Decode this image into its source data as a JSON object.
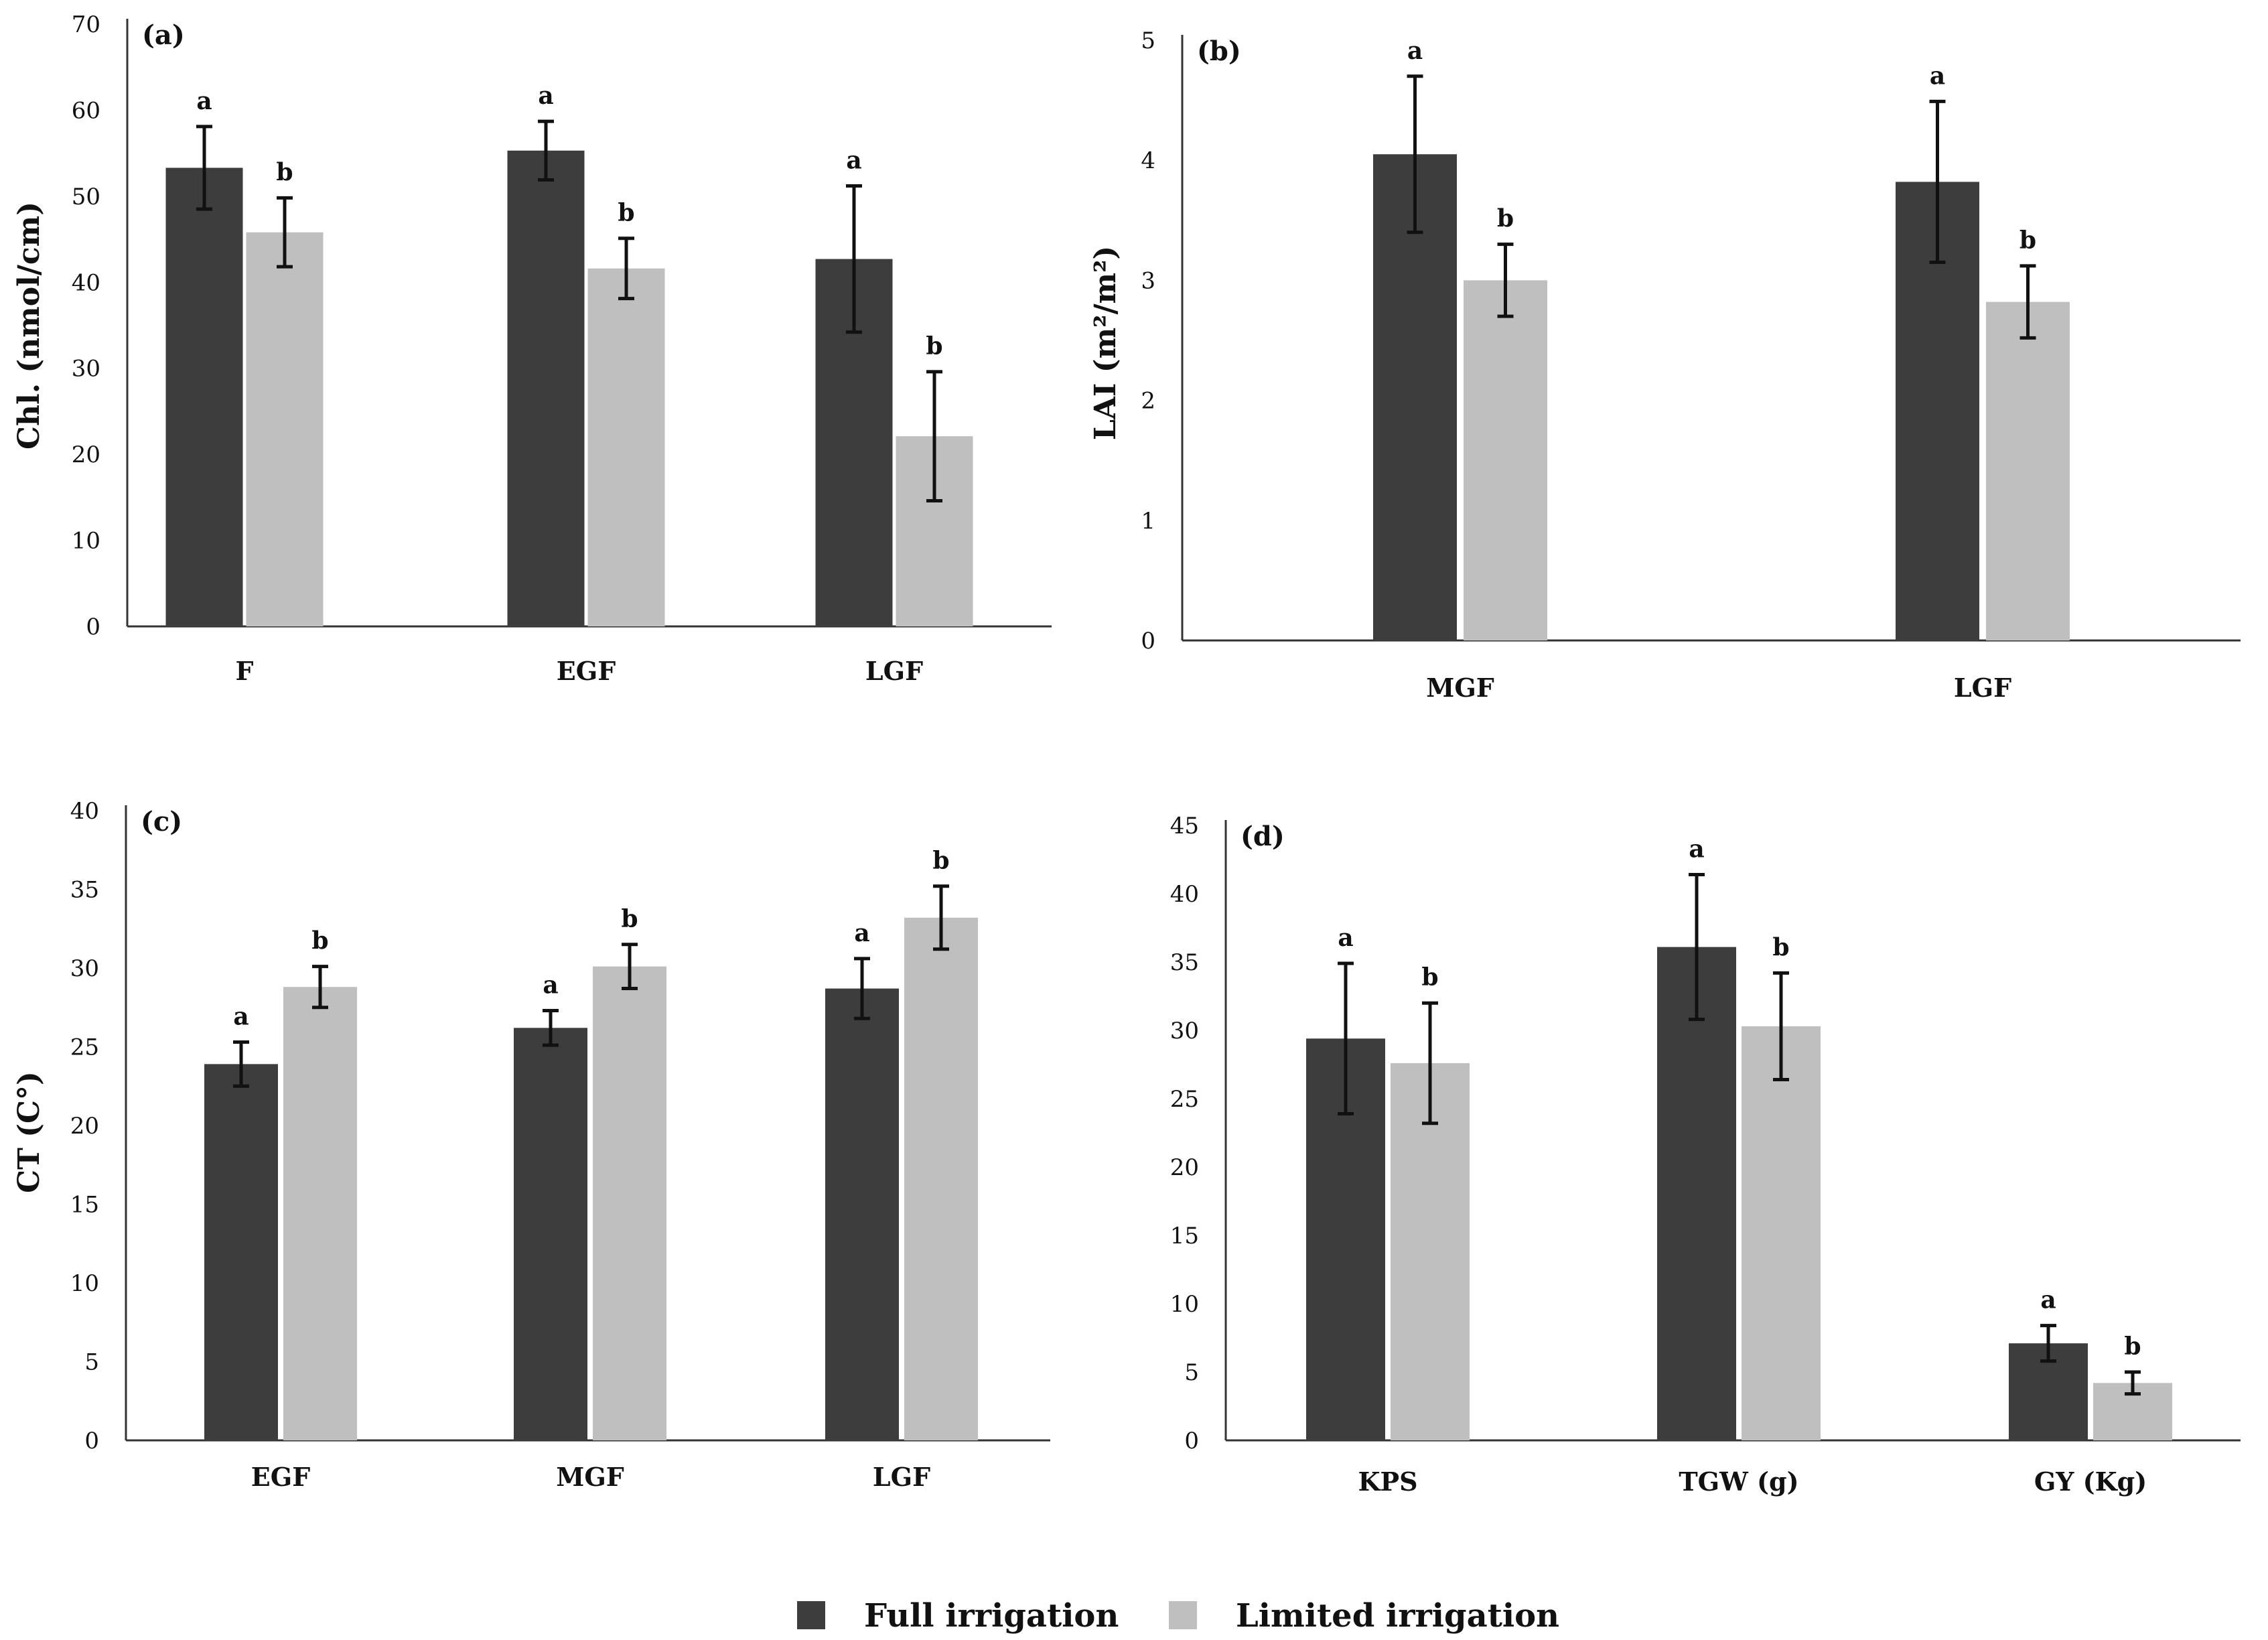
{
  "colors": {
    "full": "#3d3d3d",
    "limited": "#bfbfbf",
    "axis": "#333333",
    "errbar": "#111111"
  },
  "legend": [
    {
      "label": "Full irrigation",
      "color": "#3d3d3d"
    },
    {
      "label": "Limited irrigation",
      "color": "#bfbfbf"
    }
  ],
  "chart_data": [
    {
      "type": "bar",
      "panel": "(a)",
      "ylabel": "Chl. (nmol/cm)",
      "ylim": [
        0,
        70
      ],
      "yticks": [
        0,
        10,
        20,
        30,
        40,
        50,
        60,
        70
      ],
      "categories": [
        "F",
        "EGF",
        "LGF"
      ],
      "series": [
        {
          "name": "Full irrigation",
          "values": [
            53.3,
            55.3,
            42.7
          ],
          "errors": [
            4.8,
            3.4,
            8.5
          ],
          "letters": [
            "a",
            "a",
            "a"
          ]
        },
        {
          "name": "Limited irrigation",
          "values": [
            45.8,
            41.6,
            22.1
          ],
          "errors": [
            4,
            3.5,
            7.5
          ],
          "letters": [
            "b",
            "b",
            "b"
          ]
        }
      ]
    },
    {
      "type": "bar",
      "panel": "(b)",
      "ylabel": "LAI (m²/m²)",
      "ylim": [
        0,
        5
      ],
      "yticks": [
        0,
        1,
        2,
        3,
        4,
        5
      ],
      "categories": [
        "MGF",
        "LGF"
      ],
      "series": [
        {
          "name": "Full irrigation",
          "values": [
            4.05,
            3.82
          ],
          "errors": [
            0.65,
            0.67
          ],
          "letters": [
            "a",
            "a"
          ]
        },
        {
          "name": "Limited irrigation",
          "values": [
            3.0,
            2.82
          ],
          "errors": [
            0.3,
            0.3
          ],
          "letters": [
            "b",
            "b"
          ]
        }
      ]
    },
    {
      "type": "bar",
      "panel": "(c)",
      "ylabel": "CT (C°)",
      "ylim": [
        0,
        40
      ],
      "yticks": [
        0,
        5,
        10,
        15,
        20,
        25,
        30,
        35,
        40
      ],
      "categories": [
        "EGF",
        "MGF",
        "LGF"
      ],
      "series": [
        {
          "name": "Full irrigation",
          "values": [
            23.9,
            26.2,
            28.7
          ],
          "errors": [
            1.4,
            1.1,
            1.9
          ],
          "letters": [
            "a",
            "a",
            "a"
          ]
        },
        {
          "name": "Limited irrigation",
          "values": [
            28.8,
            30.1,
            33.2
          ],
          "errors": [
            1.3,
            1.4,
            2.0
          ],
          "letters": [
            "b",
            "b",
            "b"
          ]
        }
      ]
    },
    {
      "type": "bar",
      "panel": "(d)",
      "ylabel": "",
      "ylim": [
        0,
        45
      ],
      "yticks": [
        0,
        5,
        10,
        15,
        20,
        25,
        30,
        35,
        40,
        45
      ],
      "categories": [
        "KPS",
        "TGW  (g)",
        "GY  (Kg)"
      ],
      "series": [
        {
          "name": "Full irrigation",
          "values": [
            29.4,
            36.1,
            7.1
          ],
          "errors": [
            5.5,
            5.3,
            1.3
          ],
          "letters": [
            "a",
            "a",
            "a"
          ]
        },
        {
          "name": "Limited irrigation",
          "values": [
            27.6,
            30.3,
            4.2
          ],
          "errors": [
            4.4,
            3.9,
            0.8
          ],
          "letters": [
            "b",
            "b",
            "b"
          ]
        }
      ]
    }
  ]
}
